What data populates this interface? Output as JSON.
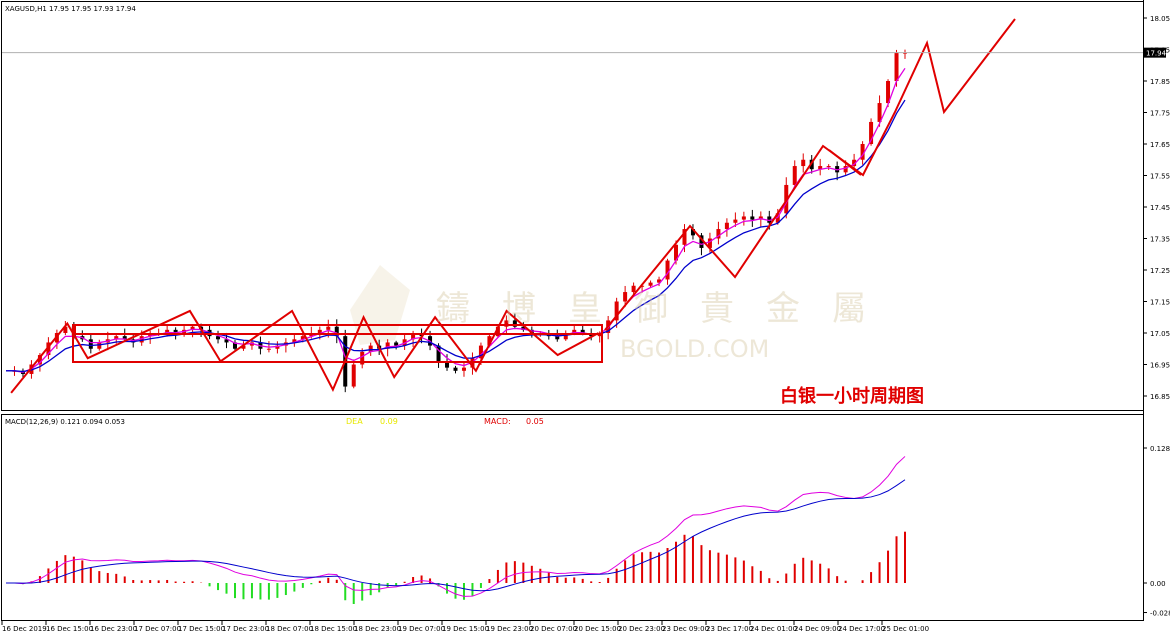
{
  "chart_data": [
    {
      "type": "candlestick",
      "symbol_header": "XAGUSD,H1  17.95 17.95 17.93 17.94",
      "overlay_title": "白银一小时周期图",
      "y_ticks": [
        "18.05",
        "17.95",
        "17.85",
        "17.75",
        "17.65",
        "17.55",
        "17.45",
        "17.35",
        "17.25",
        "17.15",
        "17.05",
        "16.95",
        "16.85"
      ],
      "ylim": [
        16.83,
        18.08
      ],
      "current_price": 17.94,
      "current_price_label": "17.94",
      "x_ticks": [
        "16 Dec 2019",
        "16 Dec 15:00",
        "16 Dec 23:00",
        "17 Dec 07:00",
        "17 Dec 15:00",
        "17 Dec 23:00",
        "18 Dec 07:00",
        "18 Dec 15:00",
        "18 Dec 23:00",
        "19 Dec 07:00",
        "19 Dec 15:00",
        "19 Dec 23:00",
        "20 Dec 07:00",
        "20 Dec 15:00",
        "20 Dec 23:00",
        "23 Dec 09:00",
        "23 Dec 17:00",
        "24 Dec 01:00",
        "24 Dec 09:00",
        "24 Dec 17:00",
        "25 Dec 01:00"
      ],
      "close_path": [
        16.93,
        16.93,
        16.92,
        16.95,
        16.98,
        17.02,
        17.05,
        17.07,
        17.04,
        17.03,
        17.0,
        17.02,
        17.03,
        17.04,
        17.03,
        17.02,
        17.04,
        17.05,
        17.05,
        17.06,
        17.05,
        17.06,
        17.07,
        17.06,
        17.04,
        17.03,
        17.02,
        17.0,
        17.01,
        17.02,
        17.0,
        17.0,
        17.01,
        17.02,
        17.03,
        17.04,
        17.05,
        17.06,
        17.07,
        17.04,
        16.88,
        16.95,
        16.99,
        17.01,
        17.0,
        17.02,
        17.01,
        17.03,
        17.05,
        17.04,
        17.01,
        16.96,
        16.94,
        16.93,
        16.94,
        16.97,
        17.01,
        17.04,
        17.07,
        17.09,
        17.07,
        17.06,
        17.05,
        17.05,
        17.04,
        17.03,
        17.05,
        17.06,
        17.05,
        17.04,
        17.05,
        17.09,
        17.15,
        17.18,
        17.2,
        17.2,
        17.21,
        17.22,
        17.28,
        17.33,
        17.38,
        17.36,
        17.32,
        17.35,
        17.38,
        17.4,
        17.41,
        17.42,
        17.41,
        17.42,
        17.4,
        17.43,
        17.52,
        17.58,
        17.6,
        17.57,
        17.58,
        17.58,
        17.56,
        17.58,
        17.6,
        17.65,
        17.72,
        17.78,
        17.85,
        17.94,
        17.94
      ],
      "macd_hist_range": [
        -0.028,
        0.128
      ],
      "macd_axis_ticks": [
        "0.128",
        "0.00",
        "-0.028"
      ],
      "macd_header": "MACD(12,26,9) 0.121 0.094 0.053",
      "dea_label": "DEA",
      "dea_value": "0.09",
      "macd_label": "MACD:",
      "macd_value": "0.05"
    }
  ],
  "watermark": {
    "chars": [
      "鑄",
      "博",
      "皇",
      "御",
      "貴",
      "金",
      "屬"
    ],
    "url": "BGOLD.COM"
  },
  "colors": {
    "bull": "#e00000",
    "bear": "#000000",
    "ma_fast": "#e000e0",
    "ma_slow": "#0000cc",
    "zigzag": "#e00000",
    "hist_pos": "#e00000",
    "hist_neg": "#22dd22",
    "grid": "#c0c0c0"
  }
}
